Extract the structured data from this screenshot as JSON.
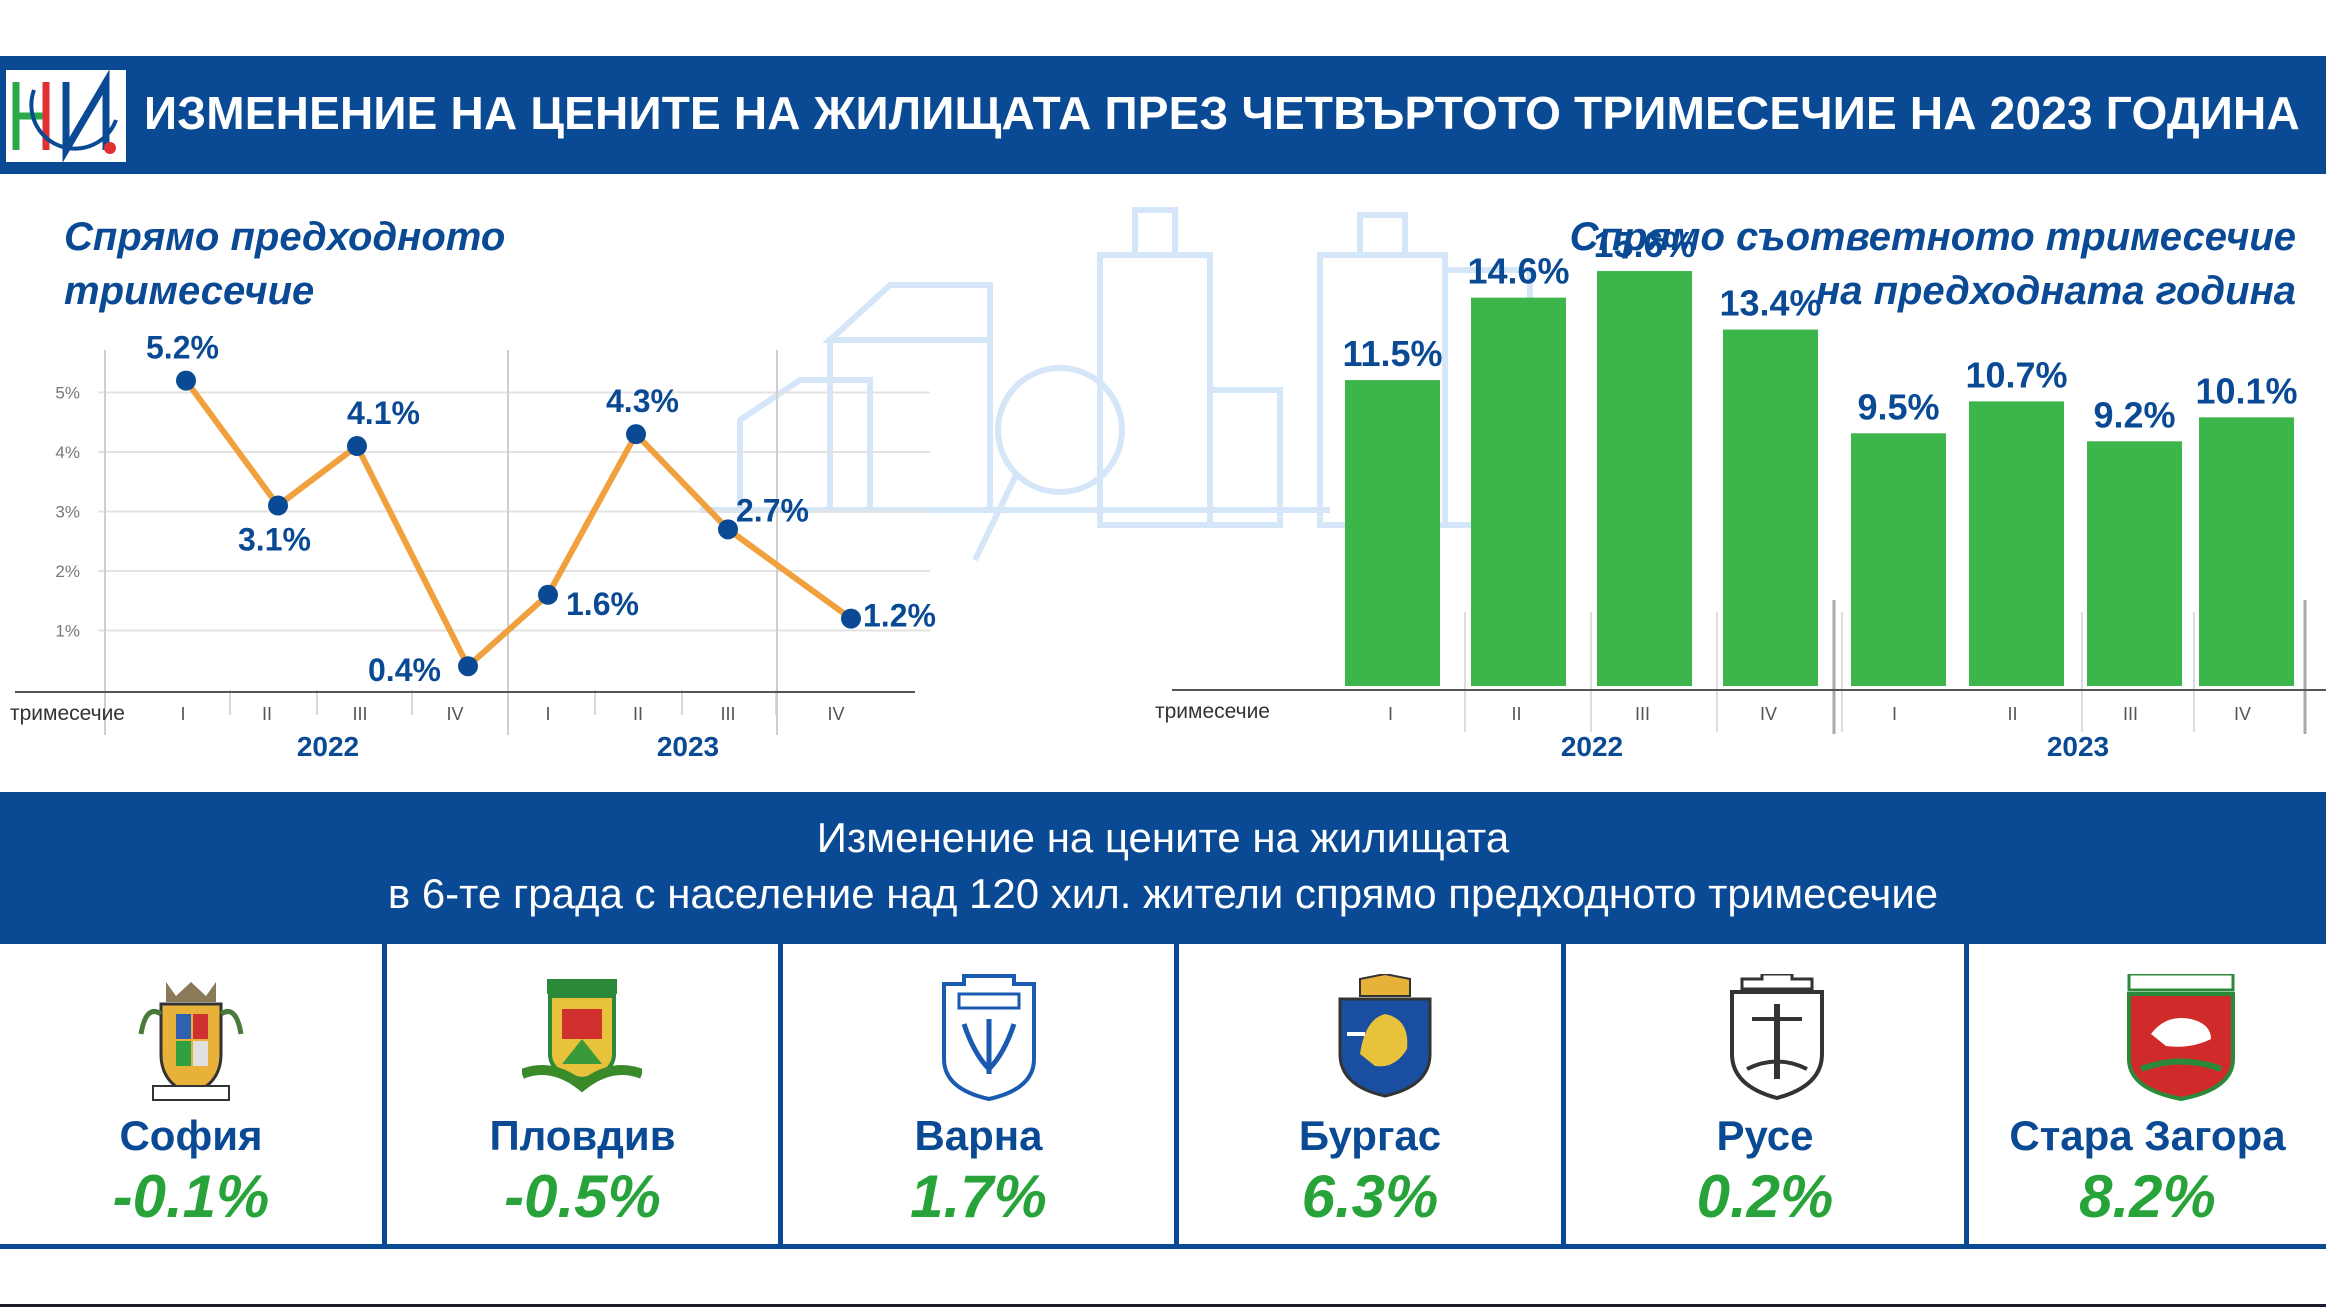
{
  "header": {
    "title": "ИЗМЕНЕНИЕ НА ЦЕНИТЕ НА ЖИЛИЩАТА ПРЕЗ ЧЕТВЪРТОТО ТРИМЕСЕЧИЕ НА 2023 ГОДИНА",
    "logo": "nsi-logo"
  },
  "left_panel": {
    "title_line1": "Спрямо предходното",
    "title_line2": "тримесечие"
  },
  "right_panel": {
    "title_line1": "Спрямо съответното тримесечие",
    "title_line2": "на предходната година"
  },
  "middle_banner": {
    "line1": "Изменение на цените на жилищата",
    "line2": "в 6-те града с население над 120 хил. жители спрямо предходното тримесечие"
  },
  "cities": [
    {
      "name": "София",
      "value": "-0.1%",
      "icon": "sofia-crest-icon"
    },
    {
      "name": "Пловдив",
      "value": "-0.5%",
      "icon": "plovdiv-crest-icon"
    },
    {
      "name": "Варна",
      "value": "1.7%",
      "icon": "varna-crest-icon"
    },
    {
      "name": "Бургас",
      "value": "6.3%",
      "icon": "burgas-crest-icon"
    },
    {
      "name": "Русе",
      "value": "0.2%",
      "icon": "ruse-crest-icon"
    },
    {
      "name": "Стара Загора",
      "value": "8.2%",
      "icon": "stara-zagora-crest-icon"
    }
  ],
  "colors": {
    "brand_blue": "#0a4a94",
    "line_orange": "#f0a03c",
    "bar_green": "#3cb54a",
    "value_green": "#27a33a",
    "marker_blue": "#0a4a94"
  },
  "chart_data": [
    {
      "type": "line",
      "title": "Спрямо предходното тримесечие",
      "xlabel": "тримесечие",
      "categories": [
        "I",
        "II",
        "III",
        "IV",
        "I",
        "II",
        "III",
        "IV"
      ],
      "groups": [
        "2022",
        "2023"
      ],
      "values": [
        5.2,
        3.1,
        4.1,
        0.4,
        1.6,
        4.3,
        2.7,
        1.2
      ],
      "labels": [
        "5.2%",
        "3.1%",
        "4.1%",
        "0.4%",
        "1.6%",
        "4.3%",
        "2.7%",
        "1.2%"
      ],
      "yticks": [
        "1%",
        "2%",
        "3%",
        "4%",
        "5%"
      ],
      "ylim": [
        0,
        5.5
      ],
      "grid": true
    },
    {
      "type": "bar",
      "title": "Спрямо съответното тримесечие на предходната година",
      "xlabel": "тримесечие",
      "categories": [
        "I",
        "II",
        "III",
        "IV",
        "I",
        "II",
        "III",
        "IV"
      ],
      "groups": [
        "2022",
        "2023"
      ],
      "values": [
        11.5,
        14.6,
        15.6,
        13.4,
        9.5,
        10.7,
        9.2,
        10.1
      ],
      "labels": [
        "11.5%",
        "14.6%",
        "15.6%",
        "13.4%",
        "9.5%",
        "10.7%",
        "9.2%",
        "10.1%"
      ],
      "ylim": [
        0,
        16
      ]
    }
  ]
}
